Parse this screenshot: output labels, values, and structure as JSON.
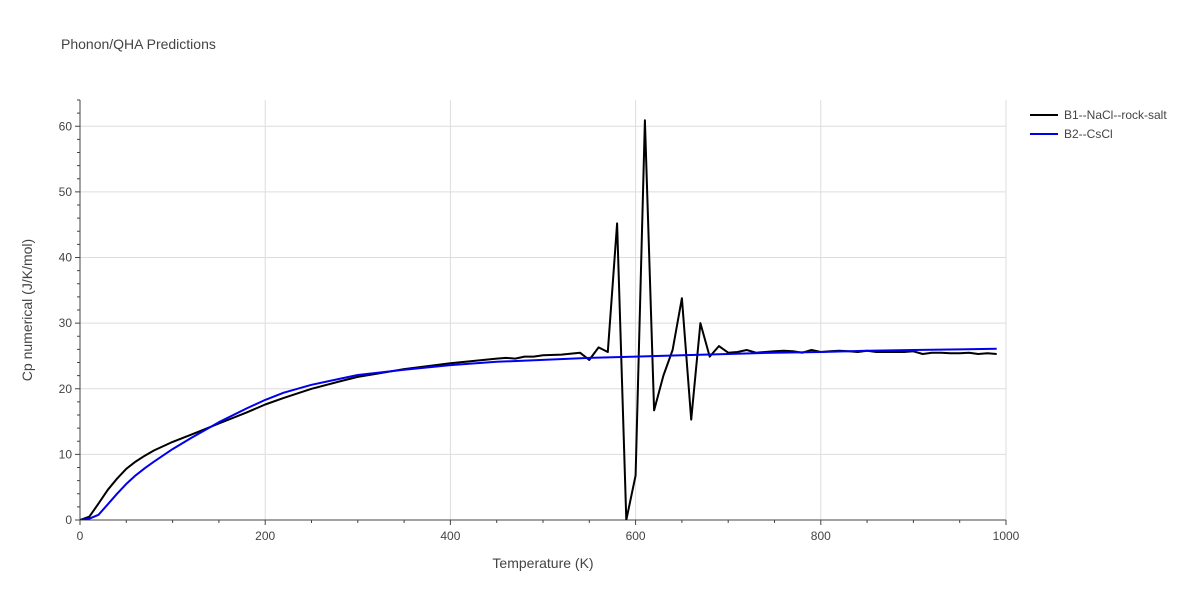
{
  "chart_data": {
    "type": "line",
    "title": "Phonon/QHA Predictions",
    "xlabel": "Temperature (K)",
    "ylabel": "Cp numerical (J/K/mol)",
    "xlim": [
      0,
      1000
    ],
    "ylim": [
      0,
      64
    ],
    "xticks": [
      0,
      200,
      400,
      600,
      800,
      1000
    ],
    "yticks": [
      0,
      10,
      20,
      30,
      40,
      50,
      60
    ],
    "grid": true,
    "legend_position": "top-right outside",
    "series": [
      {
        "name": "B1--NaCl--rock-salt",
        "color": "#000000",
        "x": [
          0,
          10,
          20,
          30,
          40,
          50,
          60,
          70,
          80,
          100,
          120,
          150,
          180,
          200,
          220,
          250,
          280,
          300,
          350,
          400,
          450,
          460,
          470,
          480,
          490,
          500,
          520,
          540,
          550,
          560,
          570,
          580,
          590,
          600,
          610,
          620,
          630,
          640,
          650,
          660,
          670,
          680,
          690,
          700,
          710,
          720,
          730,
          740,
          750,
          760,
          770,
          780,
          790,
          800,
          810,
          820,
          830,
          840,
          850,
          860,
          870,
          880,
          890,
          900,
          910,
          920,
          930,
          940,
          950,
          960,
          970,
          980,
          990
        ],
        "y": [
          0,
          0.5,
          2.5,
          4.6,
          6.3,
          7.8,
          8.9,
          9.8,
          10.6,
          11.9,
          13.0,
          14.7,
          16.4,
          17.6,
          18.6,
          20.0,
          21.1,
          21.8,
          23.0,
          23.9,
          24.6,
          24.7,
          24.6,
          24.9,
          24.9,
          25.1,
          25.2,
          25.5,
          24.4,
          26.3,
          25.6,
          45.2,
          0,
          6.8,
          60.9,
          16.7,
          22.0,
          25.9,
          33.8,
          15.3,
          30.0,
          24.9,
          26.5,
          25.5,
          25.6,
          25.9,
          25.5,
          25.6,
          25.7,
          25.8,
          25.7,
          25.5,
          25.9,
          25.6,
          25.7,
          25.8,
          25.7,
          25.6,
          25.8,
          25.6,
          25.6,
          25.6,
          25.6,
          25.7,
          25.3,
          25.5,
          25.5,
          25.4,
          25.4,
          25.5,
          25.3,
          25.4,
          25.3
        ]
      },
      {
        "name": "B2--CsCl",
        "color": "#0000ee",
        "x": [
          0,
          10,
          20,
          30,
          40,
          50,
          60,
          70,
          80,
          100,
          120,
          150,
          180,
          200,
          220,
          250,
          280,
          300,
          350,
          400,
          450,
          500,
          550,
          600,
          650,
          700,
          750,
          800,
          850,
          900,
          950,
          990
        ],
        "y": [
          0,
          0.2,
          0.8,
          2.4,
          4.0,
          5.5,
          6.8,
          7.9,
          8.9,
          10.8,
          12.5,
          14.9,
          17.0,
          18.3,
          19.4,
          20.6,
          21.5,
          22.1,
          22.9,
          23.6,
          24.1,
          24.4,
          24.7,
          24.9,
          25.1,
          25.3,
          25.5,
          25.6,
          25.8,
          25.9,
          26.0,
          26.1
        ]
      }
    ]
  }
}
